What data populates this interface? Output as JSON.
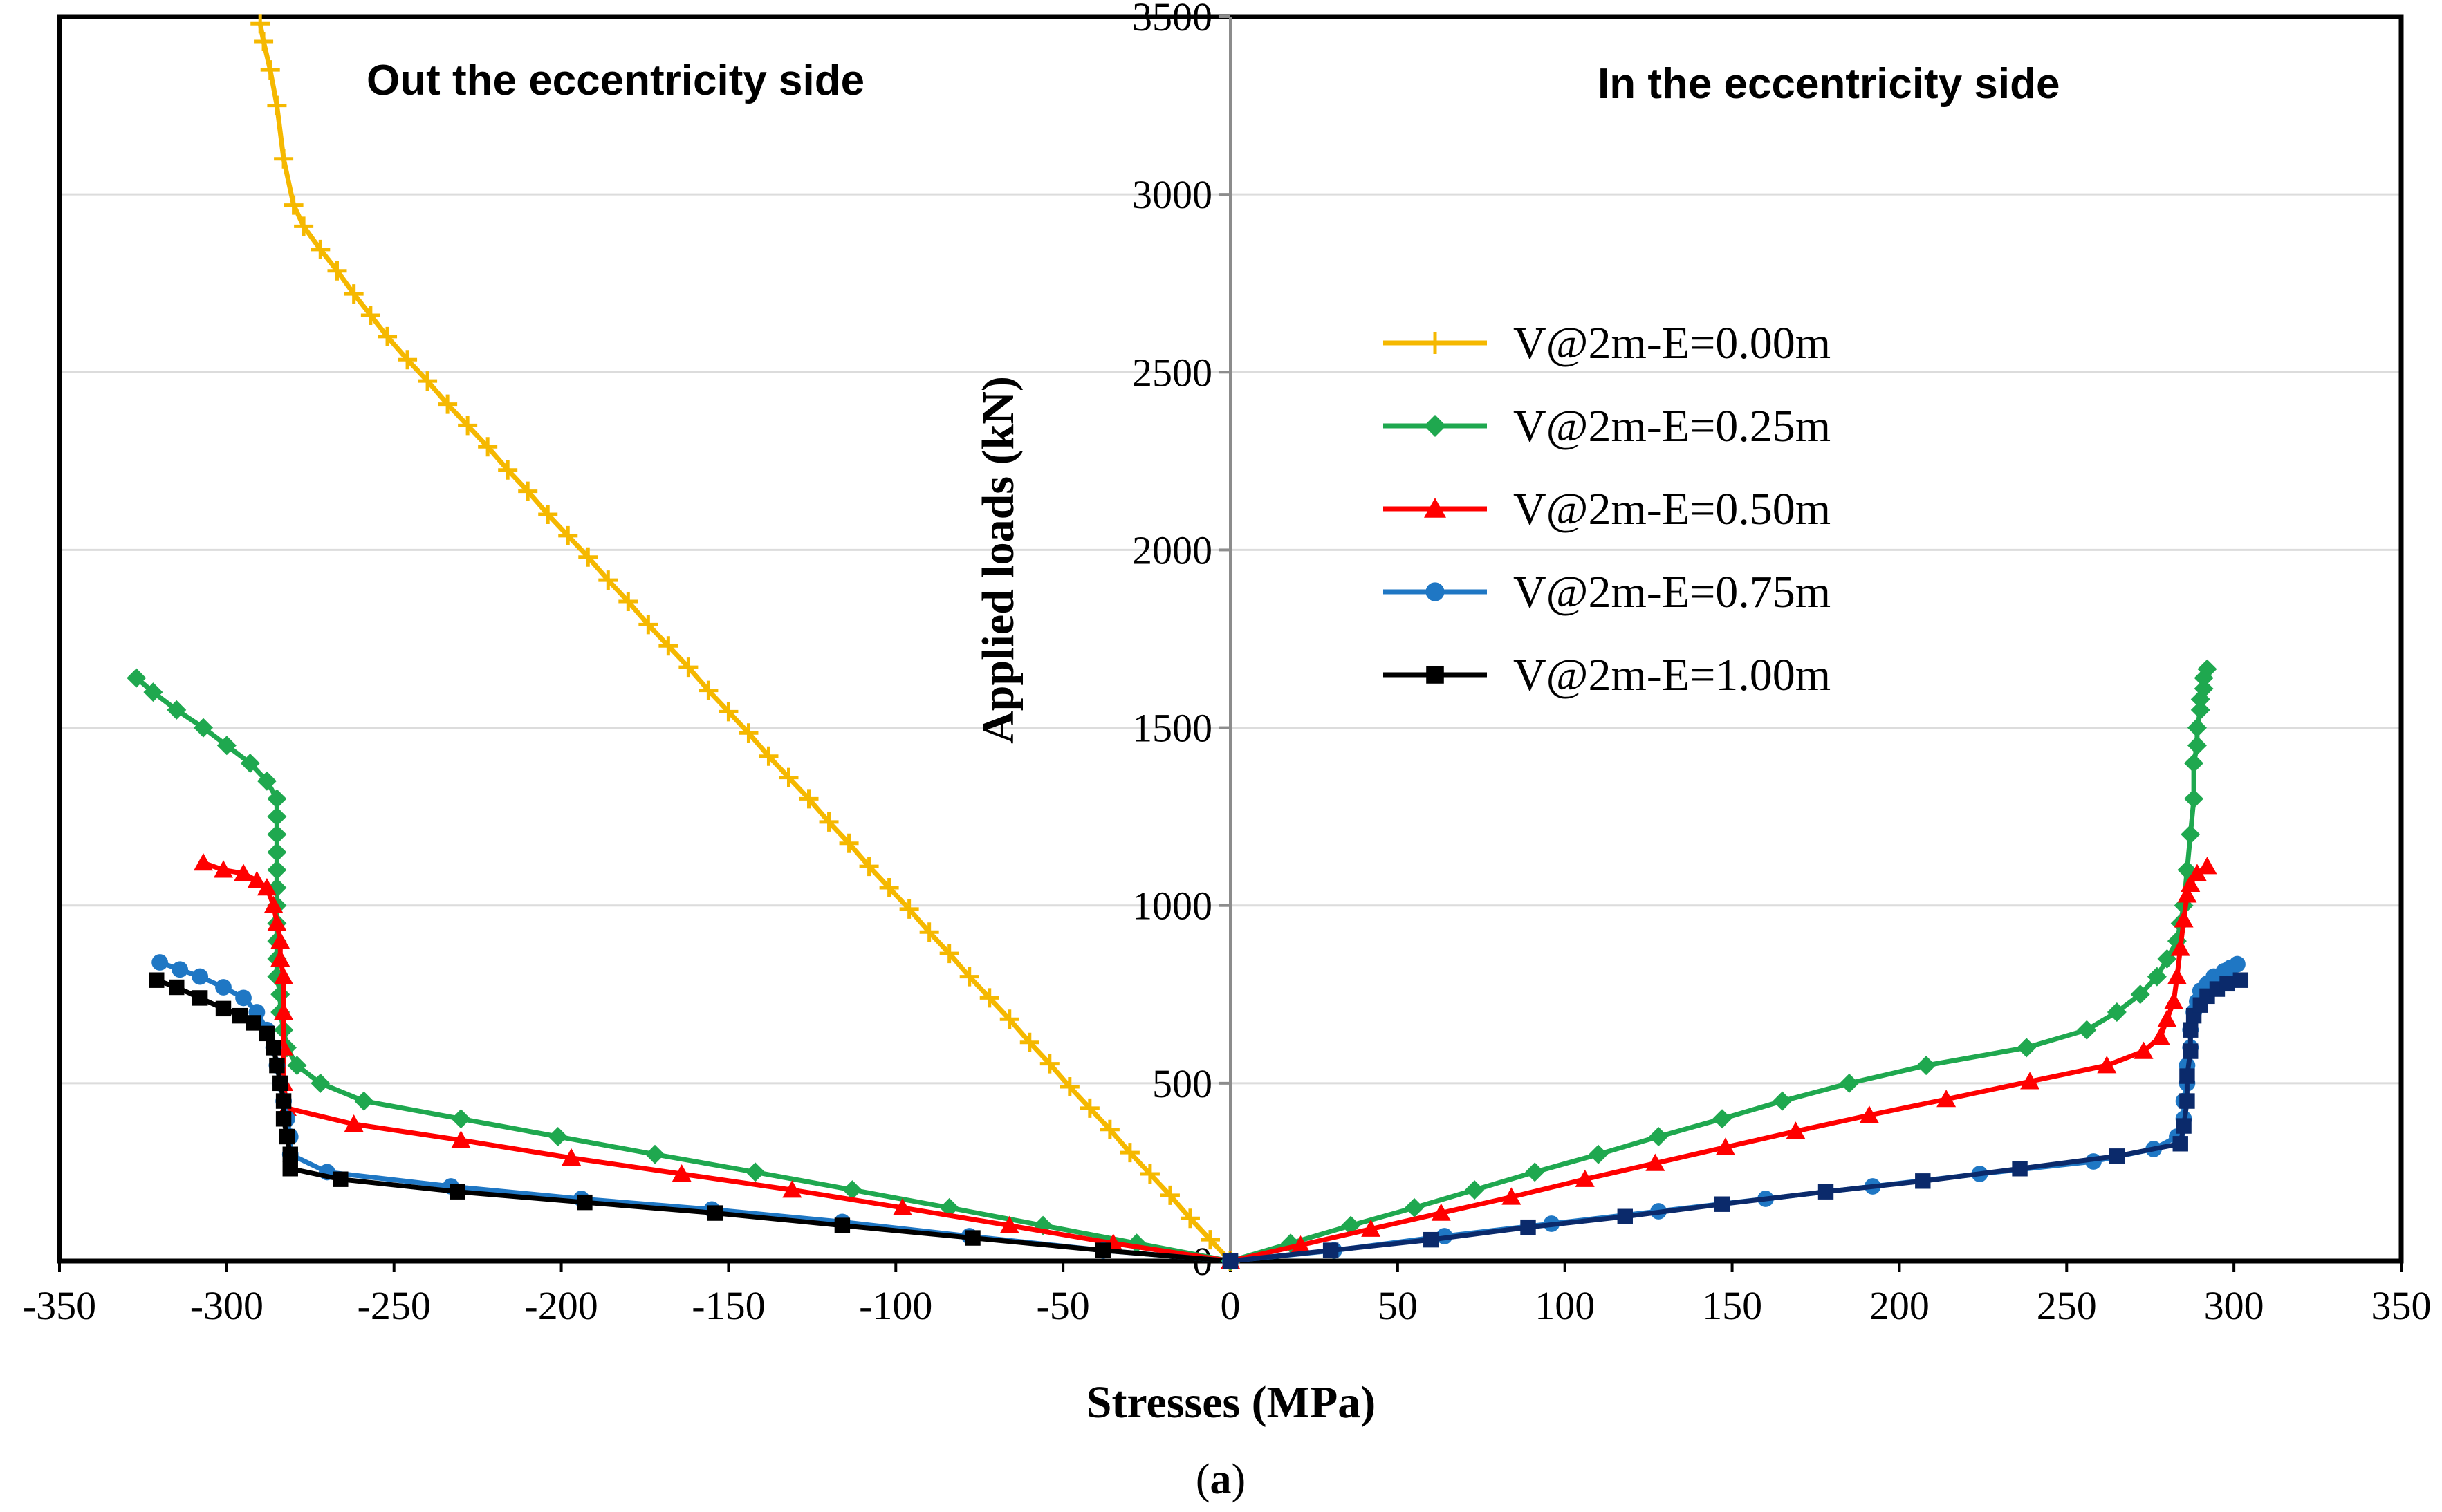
{
  "chart_data": {
    "type": "line",
    "xlabel": "Stresses (MPa)",
    "ylabel": "Applied loads (kN)",
    "xlim": [
      -350,
      350
    ],
    "ylim": [
      0,
      3500
    ],
    "x_ticks": [
      -350,
      -300,
      -250,
      -200,
      -150,
      -100,
      -50,
      0,
      50,
      100,
      150,
      200,
      250,
      300,
      350
    ],
    "y_ticks": [
      0,
      500,
      1000,
      1500,
      2000,
      2500,
      3000,
      3500
    ],
    "grid": "horizontal",
    "legend_position": "right-center",
    "annotations": {
      "left": "Out the eccentricity side",
      "right": "In the eccentricity side"
    },
    "caption": {
      "open": "(",
      "letter": "a",
      "close": ")"
    },
    "series": [
      {
        "name": "V@2m-E=0.00m",
        "color": "#F5B800",
        "marker": "plus",
        "x": [
          0,
          -6,
          -12,
          -18,
          -24,
          -30,
          -36,
          -42,
          -48,
          -54,
          -60,
          -66,
          -72,
          -78,
          -84,
          -90,
          -96,
          -102,
          -108,
          -114,
          -120,
          -126,
          -132,
          -138,
          -144,
          -150,
          -156,
          -162,
          -168,
          -174,
          -180,
          -186,
          -192,
          -198,
          -204,
          -210,
          -216,
          -222,
          -228,
          -234,
          -240,
          -246,
          -252,
          -257,
          -262,
          -267,
          -272,
          -277,
          -280,
          -283,
          -285,
          -287,
          -289,
          -290
        ],
        "y": [
          0,
          60,
          120,
          185,
          245,
          305,
          370,
          430,
          490,
          555,
          615,
          680,
          740,
          800,
          865,
          925,
          990,
          1050,
          1110,
          1175,
          1235,
          1300,
          1360,
          1420,
          1485,
          1545,
          1605,
          1670,
          1730,
          1790,
          1855,
          1915,
          1980,
          2040,
          2100,
          2165,
          2225,
          2290,
          2350,
          2410,
          2475,
          2535,
          2600,
          2660,
          2720,
          2785,
          2845,
          2910,
          2970,
          3100,
          3250,
          3350,
          3430,
          3480
        ]
      },
      {
        "name": "V@2m-E=0.25m",
        "color": "#1FA84F",
        "marker": "diamond",
        "x": [
          0,
          -28,
          -56,
          -84,
          -113,
          -142,
          -172,
          -201,
          -230,
          -259,
          -272,
          -279,
          -282,
          -283,
          -284,
          -284,
          -285,
          -285,
          -285,
          -285,
          -285,
          -285,
          -285,
          -285,
          -285,
          -285,
          -285,
          -288,
          -293,
          -300,
          -307,
          -315,
          -322,
          -327
        ],
        "y": [
          0,
          50,
          100,
          150,
          200,
          250,
          300,
          350,
          400,
          450,
          500,
          550,
          600,
          650,
          700,
          750,
          800,
          850,
          900,
          950,
          1000,
          1050,
          1100,
          1150,
          1200,
          1250,
          1300,
          1350,
          1400,
          1450,
          1500,
          1550,
          1600,
          1640
        ]
      },
      {
        "name": "V@2m-E=0.50m",
        "color": "#FF0000",
        "marker": "triangle",
        "x": [
          0,
          -35,
          -66,
          -98,
          -131,
          -164,
          -197,
          -230,
          -262,
          -282,
          -283,
          -283,
          -283,
          -283,
          -284,
          -284,
          -285,
          -286,
          -288,
          -291,
          -295,
          -301,
          -307
        ],
        "y": [
          0,
          50,
          100,
          150,
          200,
          245,
          290,
          340,
          385,
          430,
          500,
          600,
          700,
          800,
          850,
          900,
          950,
          1000,
          1050,
          1070,
          1090,
          1100,
          1120
        ]
      },
      {
        "name": "V@2m-E=0.75m",
        "color": "#1F77C4",
        "marker": "circle",
        "x": [
          0,
          -38,
          -78,
          -116,
          -155,
          -194,
          -233,
          -270,
          -281,
          -281,
          -282,
          -283,
          -284,
          -285,
          -286,
          -288,
          -291,
          -295,
          -301,
          -308,
          -314,
          -320
        ],
        "y": [
          0,
          30,
          70,
          110,
          145,
          175,
          210,
          250,
          300,
          350,
          400,
          450,
          500,
          550,
          600,
          650,
          700,
          740,
          770,
          800,
          820,
          840
        ]
      },
      {
        "name": "V@2m-E=1.00m",
        "color": "#000000",
        "marker": "square",
        "x": [
          0,
          -38,
          -77,
          -116,
          -154,
          -193,
          -231,
          -266,
          -281,
          -281,
          -282,
          -283,
          -283,
          -284,
          -285,
          -286,
          -288,
          -292,
          -296,
          -301,
          -308,
          -315,
          -321
        ],
        "y": [
          0,
          30,
          65,
          100,
          135,
          165,
          195,
          230,
          260,
          300,
          350,
          400,
          450,
          500,
          550,
          600,
          640,
          670,
          690,
          710,
          740,
          770,
          790
        ]
      },
      {
        "name": "",
        "color": "#1FA84F",
        "marker": "diamond",
        "x": [
          0,
          18,
          36,
          55,
          73,
          91,
          110,
          128,
          147,
          165,
          185,
          208,
          238,
          256,
          265,
          272,
          277,
          280,
          283,
          284,
          285,
          286,
          287,
          288,
          288,
          289,
          289,
          290,
          290,
          291,
          291,
          292
        ],
        "y": [
          0,
          50,
          100,
          150,
          200,
          250,
          300,
          350,
          400,
          450,
          500,
          550,
          600,
          650,
          700,
          750,
          800,
          850,
          900,
          950,
          1000,
          1100,
          1200,
          1300,
          1400,
          1450,
          1500,
          1550,
          1580,
          1610,
          1640,
          1665
        ]
      },
      {
        "name": "",
        "color": "#FF0000",
        "marker": "triangle",
        "x": [
          0,
          21,
          42,
          63,
          84,
          106,
          127,
          148,
          169,
          191,
          214,
          239,
          262,
          273,
          278,
          280,
          282,
          283,
          284,
          285,
          286,
          287,
          289,
          292
        ],
        "y": [
          0,
          45,
          90,
          135,
          180,
          230,
          275,
          320,
          365,
          410,
          455,
          505,
          550,
          590,
          630,
          680,
          730,
          800,
          880,
          960,
          1030,
          1060,
          1090,
          1110
        ]
      },
      {
        "name": "",
        "color": "#1F77C4",
        "marker": "circle",
        "x": [
          0,
          31,
          64,
          96,
          128,
          160,
          192,
          224,
          258,
          276,
          283,
          285,
          285,
          286,
          286,
          287,
          287,
          288,
          289,
          290,
          292,
          294,
          297,
          299,
          301
        ],
        "y": [
          0,
          30,
          70,
          105,
          140,
          175,
          210,
          245,
          280,
          315,
          350,
          400,
          450,
          500,
          550,
          600,
          650,
          700,
          730,
          760,
          780,
          800,
          815,
          825,
          835
        ]
      },
      {
        "name": "",
        "color": "#0B2A6B",
        "marker": "square",
        "x": [
          0,
          30,
          60,
          89,
          118,
          147,
          178,
          207,
          236,
          265,
          284,
          285,
          286,
          286,
          287,
          287,
          288,
          290,
          292,
          295,
          298,
          302
        ],
        "y": [
          0,
          30,
          60,
          95,
          125,
          160,
          195,
          225,
          260,
          295,
          330,
          380,
          450,
          520,
          590,
          650,
          690,
          720,
          745,
          765,
          780,
          790
        ]
      }
    ]
  }
}
